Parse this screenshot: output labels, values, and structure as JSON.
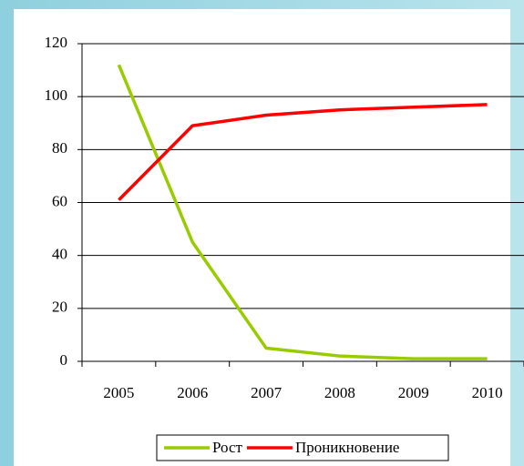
{
  "chart_data": {
    "type": "line",
    "categories": [
      "2005",
      "2006",
      "2007",
      "2008",
      "2009",
      "2010"
    ],
    "series": [
      {
        "name": "Рост",
        "color": "#99cc00",
        "values": [
          112,
          45,
          5,
          2,
          1,
          1
        ]
      },
      {
        "name": "Проникновение",
        "color": "#ff0000",
        "values": [
          61,
          89,
          93,
          95,
          96,
          97
        ]
      }
    ],
    "ylim": [
      0,
      120
    ],
    "yticks": [
      0,
      20,
      40,
      60,
      80,
      100,
      120
    ],
    "grid": true,
    "legend": "bottom"
  }
}
